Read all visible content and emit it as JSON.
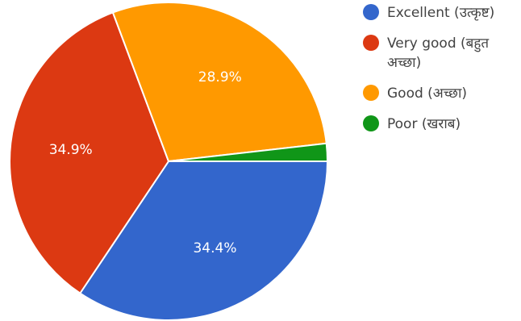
{
  "chart_data": {
    "type": "pie",
    "title": "",
    "legend_position": "right",
    "slices": [
      {
        "label": "Excellent (उत्कृष्ट)",
        "legend_lines": [
          "Excellent (उत्कृष्ट)"
        ],
        "value": 34.4,
        "display": "34.4%",
        "color": "#3366cc"
      },
      {
        "label": "Very good (बहुत अच्छा)",
        "legend_lines": [
          "Very good (बहुत",
          "अच्छा)"
        ],
        "value": 34.9,
        "display": "34.9%",
        "color": "#dc3912"
      },
      {
        "label": "Good (अच्छा)",
        "legend_lines": [
          "Good (अच्छा)"
        ],
        "value": 28.9,
        "display": "28.9%",
        "color": "#ff9900"
      },
      {
        "label": "Poor (खराब)",
        "legend_lines": [
          "Poor (खराब)"
        ],
        "value": 1.8,
        "display": "",
        "color": "#109618"
      }
    ]
  }
}
